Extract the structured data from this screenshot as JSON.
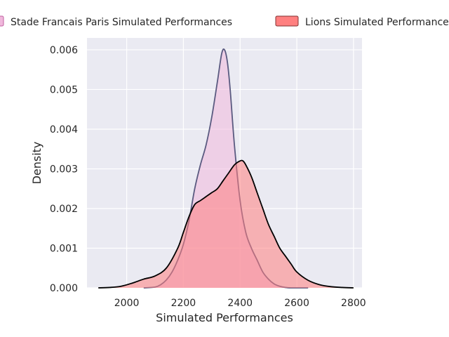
{
  "chart_data": {
    "type": "area",
    "title": "",
    "xlabel": "Simulated Performances",
    "ylabel": "Density",
    "xlim": [
      1860,
      2830
    ],
    "ylim": [
      0,
      0.0063
    ],
    "x_ticks": [
      2000,
      2200,
      2400,
      2600,
      2800
    ],
    "y_ticks": [
      0.0,
      0.001,
      0.002,
      0.003,
      0.004,
      0.005,
      0.006
    ],
    "x_tick_labels": [
      "2000",
      "2200",
      "2400",
      "2600",
      "2800"
    ],
    "y_tick_labels": [
      "0.000",
      "0.001",
      "0.002",
      "0.003",
      "0.004",
      "0.005",
      "0.006"
    ],
    "grid": true,
    "legend_position": "top",
    "series": [
      {
        "name": "Stade Francais Paris Simulated Performances",
        "fill_color": "#f0b8dc",
        "line_color": "#5a5a80",
        "x": [
          2060,
          2100,
          2120,
          2140,
          2160,
          2180,
          2200,
          2220,
          2240,
          2260,
          2280,
          2300,
          2320,
          2335,
          2345,
          2355,
          2365,
          2380,
          2400,
          2420,
          2440,
          2460,
          2480,
          2500,
          2520,
          2540,
          2560,
          2580,
          2600,
          2620,
          2640
        ],
        "y": [
          0.0,
          2e-05,
          8e-05,
          0.0002,
          0.0004,
          0.0007,
          0.0011,
          0.0017,
          0.0025,
          0.0031,
          0.0036,
          0.0043,
          0.0052,
          0.0059,
          0.006,
          0.0057,
          0.005,
          0.0036,
          0.0022,
          0.0014,
          0.001,
          0.0007,
          0.0004,
          0.00022,
          0.0001,
          4e-05,
          1e-05,
          0.0,
          0.0,
          0.0,
          0.0
        ]
      },
      {
        "name": "Lions Simulated Performances",
        "fill_color": "#ff8080",
        "line_color": "#000000",
        "x": [
          1900,
          1940,
          1980,
          2020,
          2060,
          2100,
          2140,
          2180,
          2200,
          2220,
          2240,
          2260,
          2280,
          2300,
          2320,
          2340,
          2360,
          2380,
          2400,
          2410,
          2420,
          2440,
          2460,
          2480,
          2500,
          2520,
          2540,
          2560,
          2580,
          2600,
          2640,
          2680,
          2720,
          2760,
          2800
        ],
        "y": [
          0.0,
          1e-05,
          4e-05,
          0.00012,
          0.00022,
          0.0003,
          0.0005,
          0.001,
          0.0014,
          0.0018,
          0.0021,
          0.0022,
          0.0023,
          0.0024,
          0.0025,
          0.0027,
          0.0029,
          0.0031,
          0.0032,
          0.0032,
          0.0031,
          0.0028,
          0.0024,
          0.002,
          0.0016,
          0.0013,
          0.001,
          0.0008,
          0.0006,
          0.0004,
          0.00019,
          8e-05,
          3e-05,
          1e-05,
          0.0
        ]
      }
    ]
  }
}
